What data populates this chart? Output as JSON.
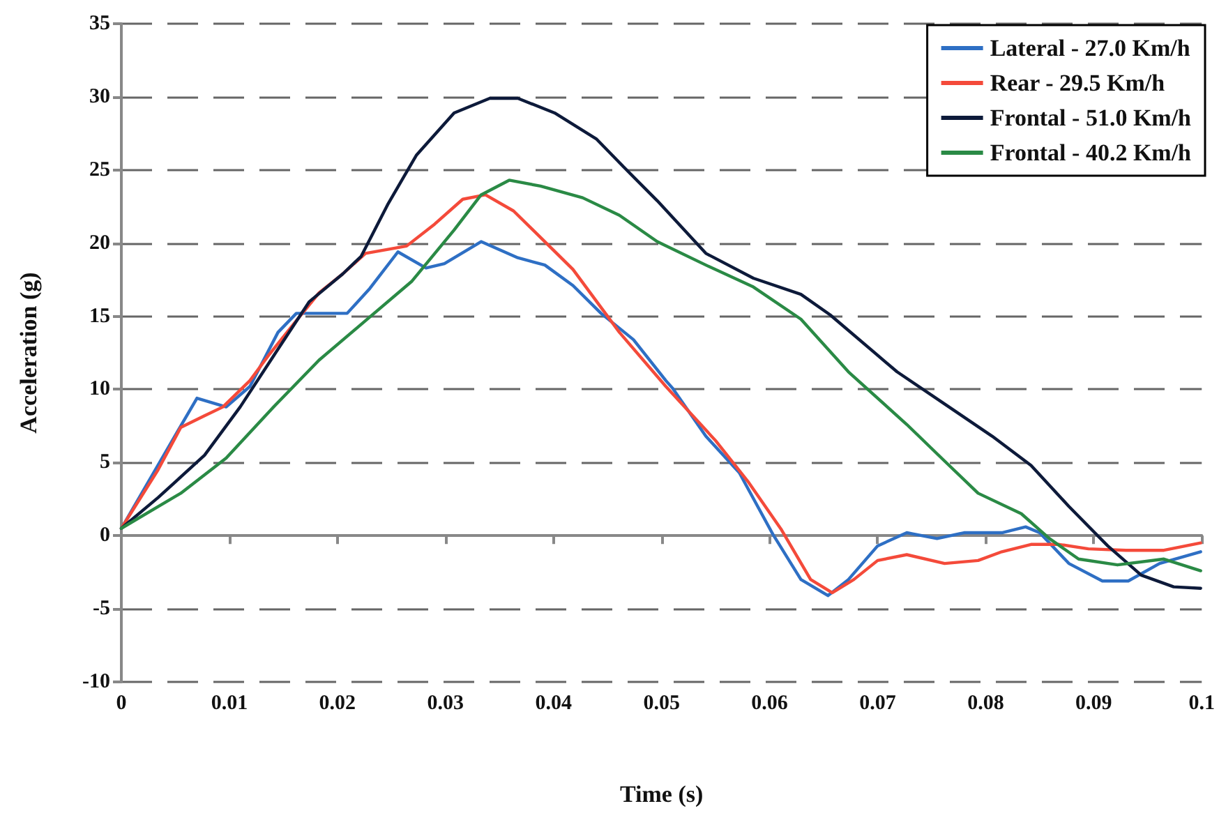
{
  "chart_data": {
    "type": "line",
    "xlabel": "Time (s)",
    "ylabel": "Acceleration (g)",
    "xlim": [
      0,
      0.1
    ],
    "xticks": [
      0,
      0.01,
      0.02,
      0.03,
      0.04,
      0.05,
      0.06,
      0.07,
      0.08,
      0.09,
      0.1
    ],
    "ylim": [
      -10,
      35
    ],
    "yticks": [
      -10,
      -5,
      0,
      5,
      10,
      15,
      20,
      25,
      30,
      35
    ],
    "grid": "y",
    "legend": "top right",
    "marker": "none",
    "line_style": "solid",
    "series": [
      {
        "name": "Lateral - 27.0 Km/h",
        "color": "#2e6fc4",
        "x": [
          0,
          0.0055,
          0.007,
          0.0097,
          0.0119,
          0.0145,
          0.0162,
          0.0209,
          0.023,
          0.0256,
          0.0282,
          0.0299,
          0.0333,
          0.0367,
          0.0392,
          0.0418,
          0.0444,
          0.0474,
          0.0504,
          0.051,
          0.0541,
          0.0572,
          0.0603,
          0.0629,
          0.0654,
          0.0673,
          0.07,
          0.0727,
          0.0755,
          0.078,
          0.0815,
          0.0837,
          0.085,
          0.0877,
          0.0908,
          0.0932,
          0.0961,
          0.0999
        ],
        "values": [
          0.5,
          7.5,
          9.4,
          8.8,
          10.2,
          13.9,
          15.2,
          15.2,
          16.9,
          19.4,
          18.3,
          18.6,
          20.1,
          19.0,
          18.5,
          17.1,
          15.2,
          13.4,
          10.6,
          10.1,
          6.8,
          4.3,
          0.1,
          -3.0,
          -4.1,
          -3.0,
          -0.7,
          0.2,
          -0.2,
          0.2,
          0.2,
          0.6,
          0.2,
          -1.9,
          -3.1,
          -3.1,
          -1.9,
          -1.1
        ]
      },
      {
        "name": "Rear - 29.5 Km/h",
        "color": "#f44a3a",
        "x": [
          0,
          0.0034,
          0.0055,
          0.0077,
          0.0094,
          0.0119,
          0.0136,
          0.0162,
          0.0183,
          0.0205,
          0.0226,
          0.0264,
          0.029,
          0.0316,
          0.0337,
          0.0363,
          0.0392,
          0.0418,
          0.0461,
          0.0504,
          0.055,
          0.058,
          0.0611,
          0.0638,
          0.0658,
          0.0678,
          0.07,
          0.0727,
          0.0762,
          0.0793,
          0.0815,
          0.0842,
          0.0868,
          0.0895,
          0.093,
          0.0965,
          0.0999
        ],
        "values": [
          0.5,
          4.5,
          7.4,
          8.2,
          8.8,
          10.6,
          12.3,
          14.7,
          16.6,
          17.9,
          19.3,
          19.8,
          21.3,
          23.0,
          23.3,
          22.2,
          20.1,
          18.2,
          13.9,
          10.2,
          6.5,
          3.7,
          0.4,
          -3.0,
          -3.9,
          -3.0,
          -1.7,
          -1.3,
          -1.9,
          -1.7,
          -1.1,
          -0.6,
          -0.6,
          -0.9,
          -1.0,
          -1.0,
          -0.5
        ]
      },
      {
        "name": "Frontal - 51.0 Km/h",
        "color": "#0d1a3a",
        "x": [
          0,
          0.0034,
          0.0077,
          0.011,
          0.0141,
          0.0174,
          0.0205,
          0.0222,
          0.0247,
          0.0273,
          0.0308,
          0.0341,
          0.0367,
          0.0401,
          0.044,
          0.0465,
          0.0496,
          0.0541,
          0.0585,
          0.0629,
          0.0656,
          0.0718,
          0.0762,
          0.0806,
          0.0842,
          0.0877,
          0.0913,
          0.0944,
          0.0974,
          0.0999
        ],
        "values": [
          0.5,
          2.6,
          5.5,
          8.8,
          12.3,
          16.0,
          17.9,
          19.1,
          22.7,
          26.0,
          28.9,
          29.9,
          29.9,
          28.9,
          27.1,
          25.2,
          22.9,
          19.3,
          17.6,
          16.5,
          15.1,
          11.2,
          9.0,
          6.8,
          4.8,
          2.0,
          -0.7,
          -2.7,
          -3.5,
          -3.6
        ]
      },
      {
        "name": "Frontal - 40.2 Km/h",
        "color": "#2a8a45",
        "x": [
          0,
          0.0055,
          0.0097,
          0.0141,
          0.0183,
          0.0226,
          0.0269,
          0.0308,
          0.0333,
          0.0359,
          0.0388,
          0.0427,
          0.0461,
          0.0496,
          0.0541,
          0.0585,
          0.0629,
          0.0673,
          0.0727,
          0.0762,
          0.0793,
          0.0833,
          0.0859,
          0.0886,
          0.0922,
          0.0965,
          0.0999
        ],
        "values": [
          0.5,
          2.9,
          5.3,
          8.8,
          12.0,
          14.7,
          17.4,
          20.9,
          23.3,
          24.3,
          23.9,
          23.1,
          21.9,
          20.1,
          18.5,
          17.0,
          14.8,
          11.2,
          7.6,
          5.1,
          2.9,
          1.5,
          -0.2,
          -1.6,
          -2.0,
          -1.6,
          -2.4
        ]
      }
    ]
  }
}
